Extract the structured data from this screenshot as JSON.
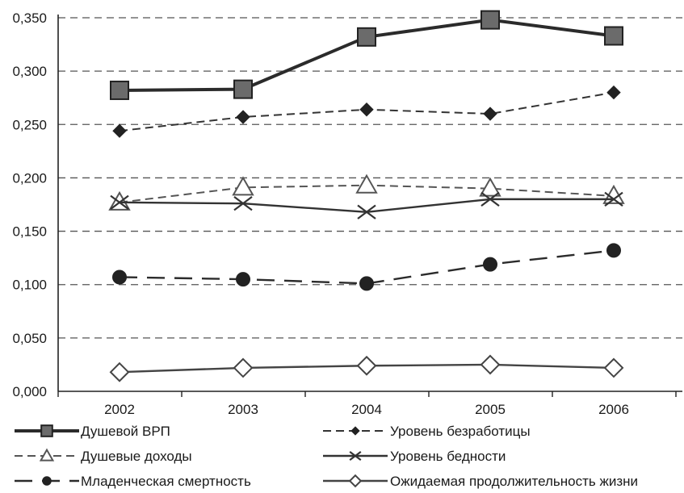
{
  "chart_data": {
    "type": "line",
    "title": "",
    "xlabel": "",
    "ylabel": "",
    "categories": [
      "2002",
      "2003",
      "2004",
      "2005",
      "2006"
    ],
    "ylim": [
      0,
      0.35
    ],
    "y_ticks": [
      "0,000",
      "0,050",
      "0,100",
      "0,150",
      "0,200",
      "0,250",
      "0,300",
      "0,350"
    ],
    "grid": "horizontal dashed",
    "legend_position": "bottom",
    "series": [
      {
        "name": "Душевой ВРП",
        "values": [
          0.282,
          0.283,
          0.332,
          0.348,
          0.333
        ],
        "marker": "square",
        "line": "solid-thick",
        "color": "#2b2b2b"
      },
      {
        "name": "Уровень безработицы",
        "values": [
          0.244,
          0.257,
          0.264,
          0.26,
          0.28
        ],
        "marker": "diamond-filled",
        "line": "dashed",
        "color": "#333333"
      },
      {
        "name": "Душевые доходы",
        "values": [
          0.177,
          0.191,
          0.193,
          0.19,
          0.183
        ],
        "marker": "triangle-open",
        "line": "dashed",
        "color": "#555555"
      },
      {
        "name": "Уровень бедности",
        "values": [
          0.177,
          0.176,
          0.168,
          0.18,
          0.18
        ],
        "marker": "x",
        "line": "solid",
        "color": "#333333"
      },
      {
        "name": "Младенческая смертность",
        "values": [
          0.107,
          0.105,
          0.101,
          0.119,
          0.132
        ],
        "marker": "circle-filled",
        "line": "long-dash",
        "color": "#2b2b2b"
      },
      {
        "name": "Ожидаемая продолжительность жизни",
        "values": [
          0.018,
          0.022,
          0.024,
          0.025,
          0.022
        ],
        "marker": "diamond-open",
        "line": "solid",
        "color": "#444444"
      }
    ]
  }
}
